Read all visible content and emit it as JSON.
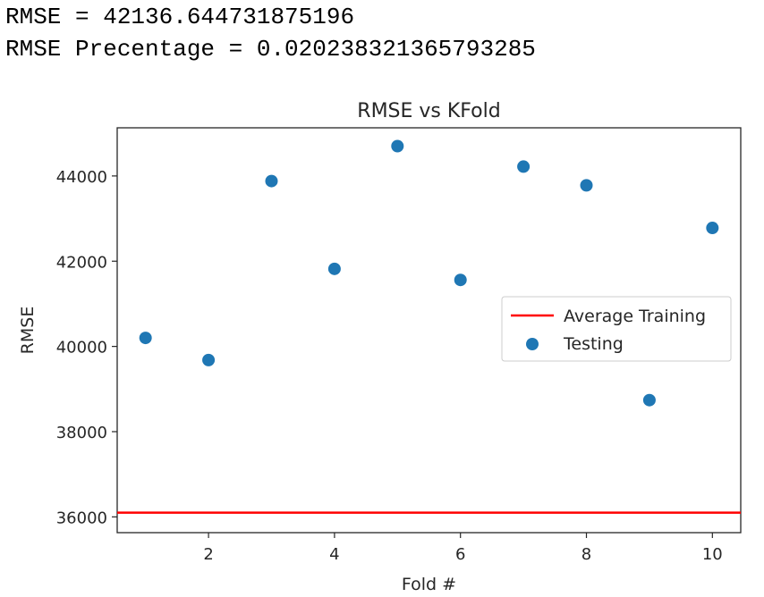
{
  "output": {
    "rmse_line": "RMSE = 42136.644731875196",
    "rmse_pct_line": "RMSE Precentage = 0.020238321365793285"
  },
  "chart_data": {
    "type": "scatter",
    "title": "RMSE vs KFold",
    "xlabel": "Fold #",
    "ylabel": "RMSE",
    "xlim": [
      0.55,
      10.45
    ],
    "ylim": [
      35630,
      45130
    ],
    "xticks": [
      2,
      4,
      6,
      8,
      10
    ],
    "yticks": [
      36000,
      38000,
      40000,
      42000,
      44000
    ],
    "grid": false,
    "legend_position": "center-right",
    "series": [
      {
        "name": "Average Training",
        "kind": "hline",
        "y": 36100,
        "color": "#ff0000"
      },
      {
        "name": "Testing",
        "kind": "scatter",
        "color": "#1f77b4",
        "x": [
          1,
          2,
          3,
          4,
          5,
          6,
          7,
          8,
          9,
          10
        ],
        "y": [
          40200,
          39680,
          43880,
          41820,
          44700,
          41560,
          44220,
          43780,
          38740,
          42780
        ]
      }
    ]
  }
}
